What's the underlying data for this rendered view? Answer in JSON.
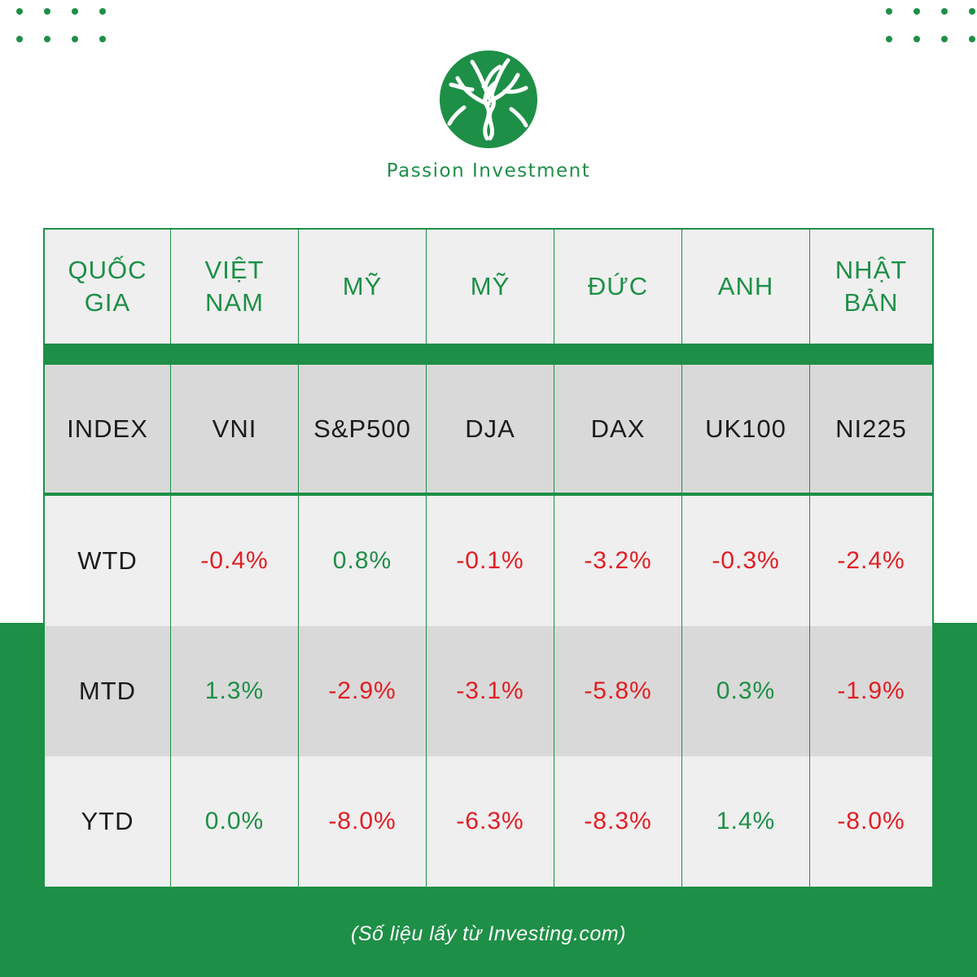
{
  "brand": {
    "name": "Passion Investment",
    "color": "#1e8f47"
  },
  "colors": {
    "green": "#1e8f47",
    "red": "#e31e24",
    "row_light": "#efefef",
    "row_dark": "#d9d9d9"
  },
  "table": {
    "header": {
      "label": [
        "QUỐC",
        "GIA"
      ],
      "columns": [
        [
          "VIỆT",
          "NAM"
        ],
        [
          "MỸ"
        ],
        [
          "MỸ"
        ],
        [
          "ĐỨC"
        ],
        [
          "ANH"
        ],
        [
          "NHẬT",
          "BẢN"
        ]
      ]
    },
    "index": {
      "label": "INDEX",
      "columns": [
        "VNI",
        "S&P500",
        "DJA",
        "DAX",
        "UK100",
        "NI225"
      ]
    },
    "rows": [
      {
        "label": "WTD",
        "values": [
          "-0.4%",
          "0.8%",
          "-0.1%",
          "-3.2%",
          "-0.3%",
          "-2.4%"
        ]
      },
      {
        "label": "MTD",
        "values": [
          "1.3%",
          "-2.9%",
          "-3.1%",
          "-5.8%",
          "0.3%",
          "-1.9%"
        ]
      },
      {
        "label": "YTD",
        "values": [
          "0.0%",
          "-8.0%",
          "-6.3%",
          "-8.3%",
          "1.4%",
          "-8.0%"
        ]
      }
    ]
  },
  "footnote": "(Số liệu lấy từ Investing.com)"
}
